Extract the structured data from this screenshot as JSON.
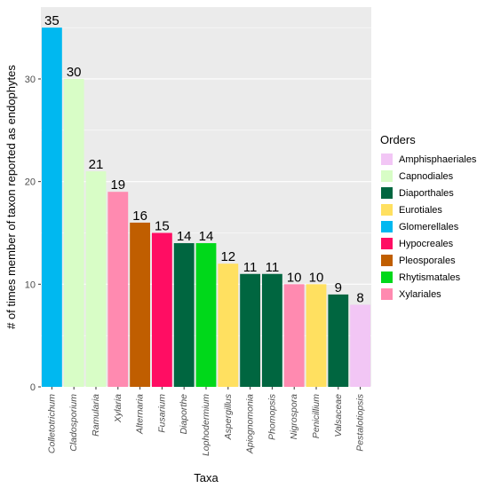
{
  "chart_data": {
    "type": "bar",
    "title": "",
    "xlabel": "Taxa",
    "ylabel": "# of times member of taxon reported as endophytes",
    "ylim": [
      0,
      37
    ],
    "yticks": [
      0,
      10,
      20,
      30
    ],
    "grid": true,
    "legend_position": "right",
    "legend_title": "Orders",
    "categories": [
      "Colletotrichum",
      "Cladosporium",
      "Ramularia",
      "Xylaria",
      "Alternaria",
      "Fusarium",
      "Diaporthe",
      "Lophodermium",
      "Aspergillus",
      "Apiognomonia",
      "Phomopsis",
      "Nigrospora",
      "Penicillium",
      "Valsaceae",
      "Pestalotiopsis"
    ],
    "values": [
      35,
      30,
      21,
      19,
      16,
      15,
      14,
      14,
      12,
      11,
      11,
      10,
      10,
      9,
      8
    ],
    "bar_orders": [
      "Glomerellales",
      "Capnodiales",
      "Capnodiales",
      "Xylariales",
      "Pleosporales",
      "Hypocreales",
      "Diaporthales",
      "Rhytismatales",
      "Eurotiales",
      "Diaporthales",
      "Diaporthales",
      "Xylariales",
      "Eurotiales",
      "Diaporthales",
      "Amphisphaeriales"
    ],
    "legend": [
      {
        "name": "Amphisphaeriales",
        "color": "#F2C6F5"
      },
      {
        "name": "Capnodiales",
        "color": "#D8FDC6"
      },
      {
        "name": "Diaporthales",
        "color": "#006640"
      },
      {
        "name": "Eurotiales",
        "color": "#FFE060"
      },
      {
        "name": "Glomerellales",
        "color": "#00B8F0"
      },
      {
        "name": "Hypocreales",
        "color": "#FF0D63"
      },
      {
        "name": "Pleosporales",
        "color": "#C05E00"
      },
      {
        "name": "Rhytismatales",
        "color": "#00D81A"
      },
      {
        "name": "Xylariales",
        "color": "#FF8AB0"
      }
    ],
    "panel_color": "#EBEBEB",
    "grid_color": "#FFFFFF"
  }
}
